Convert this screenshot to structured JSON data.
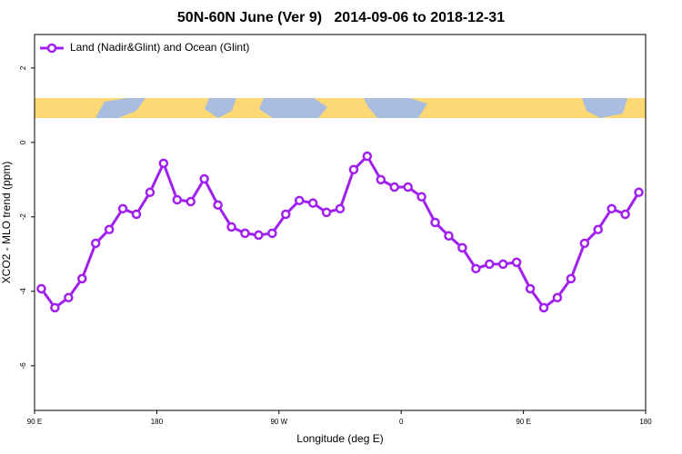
{
  "chart_data": {
    "type": "line",
    "title": "50N-60N June (Ver 9)   2014-09-06 to 2018-12-31",
    "x_label": "Longitude (deg E)",
    "y_label": "XCO2 - MLO trend (ppm)",
    "x": [
      95,
      105,
      115,
      125,
      135,
      145,
      155,
      165,
      175,
      185,
      195,
      205,
      215,
      225,
      235,
      245,
      255,
      265,
      275,
      285,
      295,
      305,
      315,
      325,
      335,
      345,
      355,
      365,
      375,
      385,
      395,
      405,
      415,
      425,
      435,
      445,
      455,
      465,
      475,
      485,
      495,
      505,
      515,
      525,
      535
    ],
    "series": [
      {
        "name": "Land (Nadir&Glint) and Ocean (Glint)",
        "color": "#a020f0",
        "values": [
          -3.93,
          -4.44,
          -4.17,
          -3.66,
          -2.71,
          -2.34,
          -1.78,
          -1.93,
          -1.34,
          -0.56,
          -1.54,
          -1.59,
          -0.98,
          -1.68,
          -2.27,
          -2.44,
          -2.49,
          -2.44,
          -1.93,
          -1.56,
          -1.63,
          -1.88,
          -1.78,
          -0.73,
          -0.37,
          -1.0,
          -1.2,
          -1.2,
          -1.46,
          -2.15,
          -2.51,
          -2.83,
          -3.39,
          -3.27,
          -3.27,
          -3.22,
          -3.93,
          -4.44,
          -4.17,
          -3.66,
          -2.71,
          -2.34,
          -1.78,
          -1.93,
          -1.34
        ]
      }
    ],
    "xlim": [
      90,
      540
    ],
    "ylim": [
      -7.2,
      2.9
    ],
    "xticks": [
      {
        "value": 90,
        "label": "90 E"
      },
      180,
      {
        "value": 270,
        "label": "90 W"
      },
      {
        "value": 360,
        "label": "0"
      },
      {
        "value": 450,
        "label": "90 E"
      },
      {
        "value": 540,
        "label": "180"
      }
    ],
    "yticks": [
      -6,
      -4,
      -2,
      0,
      2
    ],
    "legend": "top-left"
  }
}
